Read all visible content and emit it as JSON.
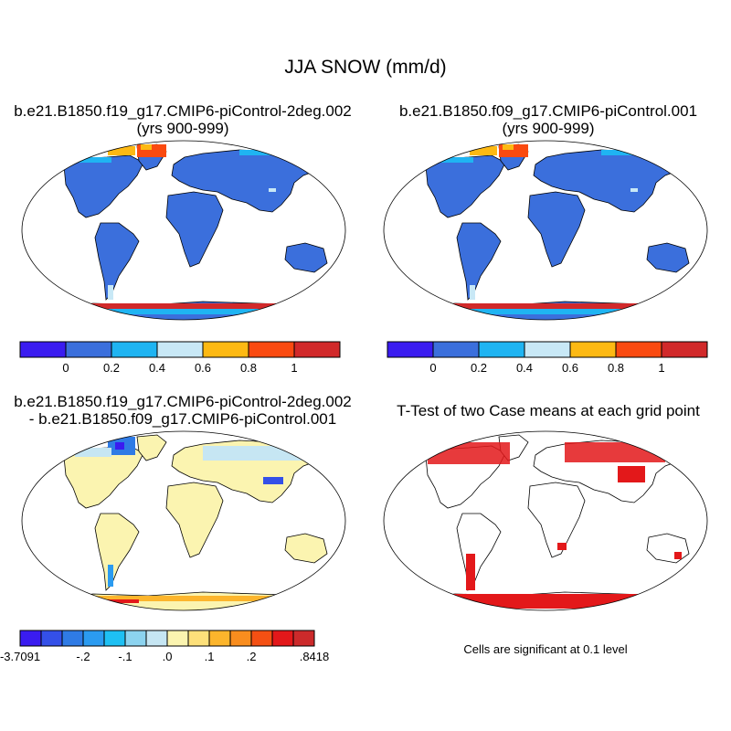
{
  "main_title": "JJA SNOW (mm/d)",
  "panels": {
    "top_left": {
      "title_line1": "b.e21.B1850.f19_g17.CMIP6-piControl-2deg.002",
      "title_line2": "(yrs 900-999)"
    },
    "top_right": {
      "title_line1": "b.e21.B1850.f09_g17.CMIP6-piControl.001",
      "title_line2": "(yrs 900-999)"
    },
    "bottom_left": {
      "title_line1": "b.e21.B1850.f19_g17.CMIP6-piControl-2deg.002",
      "title_line2": "- b.e21.B1850.f09_g17.CMIP6-piControl.001"
    },
    "bottom_right": {
      "title_line1": "T-Test of two Case means at each grid point",
      "note": "Cells are significant at 0.1 level"
    }
  },
  "colorbars": {
    "abs": {
      "colors": [
        "#3a1cf0",
        "#3b6fdc",
        "#1fb4f2",
        "#c8e8f6",
        "#fdb913",
        "#fa4a10",
        "#d1292a"
      ],
      "labels": [
        "0",
        "0.2",
        "0.4",
        "0.6",
        "0.8",
        "1"
      ]
    },
    "diff": {
      "colors": [
        "#3a1cf0",
        "#3450e8",
        "#2f7be5",
        "#2b9bf0",
        "#1ec0f3",
        "#8cd3ef",
        "#c6e6f3",
        "#fbf4b0",
        "#fde07a",
        "#fcb52c",
        "#f98d1e",
        "#f45013",
        "#e3181a",
        "#cc2a2b"
      ],
      "labels": [
        "-3.7091",
        "-.2",
        "-.1",
        ".0",
        ".1",
        ".2",
        ".8418"
      ]
    }
  },
  "map_colors": {
    "ocean": "#ffffff",
    "land_abs": "#3b6fdc",
    "land_diff": "#fbf4b0",
    "significant": "#e3181a"
  }
}
